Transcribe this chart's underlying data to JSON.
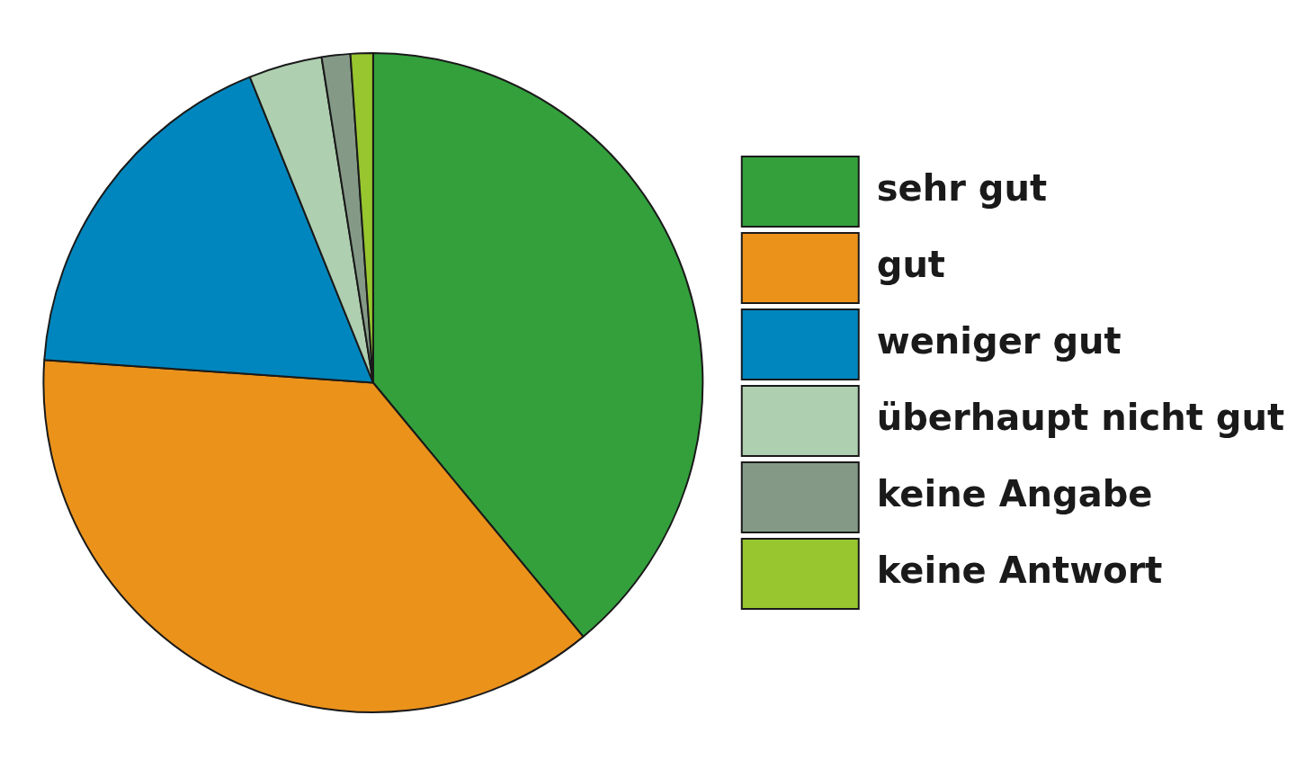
{
  "chart_data": {
    "type": "pie",
    "categories": [
      "sehr gut",
      "gut",
      "weniger gut",
      "überhaupt nicht gut",
      "keine Angabe",
      "keine Antwort"
    ],
    "values": [
      39,
      37.1,
      17.8,
      3.6,
      1.4,
      1.1
    ],
    "colors": [
      "#33a03c",
      "#eb921b",
      "#0086be",
      "#aecfb0",
      "#849a87",
      "#97c62e"
    ],
    "legend": "right"
  }
}
